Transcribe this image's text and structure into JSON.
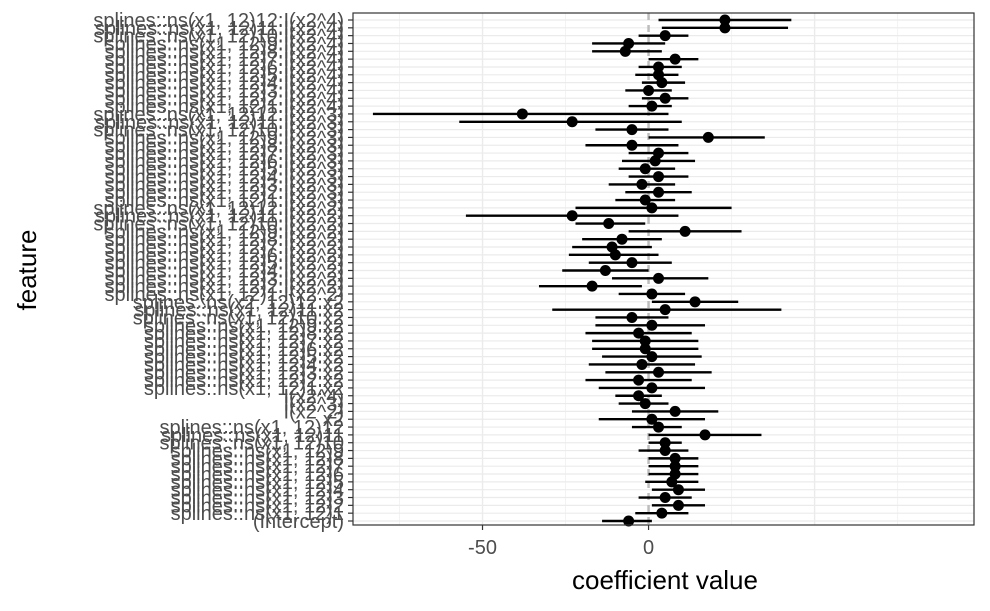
{
  "chart_data": {
    "type": "scatter",
    "subtype": "coefficient-plot-with-intervals",
    "xlabel": "coefficient value",
    "ylabel": "feature",
    "xlim": [
      -89,
      98
    ],
    "x_ticks": [
      -50,
      0
    ],
    "x_tick_labels": [
      "-50",
      "0"
    ],
    "reference_line_x": 0,
    "grid": true,
    "colors": {
      "point": "#000000",
      "interval": "#000000",
      "grid_major": "#ebebeb",
      "reference_line": "#bdbdbd",
      "panel_border": "#333333",
      "tick_text": "#4d4d4d"
    },
    "features": [
      {
        "name": "splines::ns(x1, 12)12:I(x2^4)",
        "estimate": 23,
        "lower": 3,
        "upper": 43
      },
      {
        "name": "splines::ns(x1, 12)11:I(x2^4)",
        "estimate": 23,
        "lower": 4,
        "upper": 42
      },
      {
        "name": "splines::ns(x1, 12)10:I(x2^4)",
        "estimate": 5,
        "lower": -3,
        "upper": 12
      },
      {
        "name": "splines::ns(x1, 12)9:I(x2^4)",
        "estimate": -6,
        "lower": -17,
        "upper": 5
      },
      {
        "name": "splines::ns(x1, 12)8:I(x2^4)",
        "estimate": -7,
        "lower": -17,
        "upper": 4
      },
      {
        "name": "splines::ns(x1, 12)7:I(x2^4)",
        "estimate": 8,
        "lower": 0,
        "upper": 15
      },
      {
        "name": "splines::ns(x1, 12)6:I(x2^4)",
        "estimate": 3,
        "lower": -3,
        "upper": 10
      },
      {
        "name": "splines::ns(x1, 12)5:I(x2^4)",
        "estimate": 3,
        "lower": -4,
        "upper": 9
      },
      {
        "name": "splines::ns(x1, 12)4:I(x2^4)",
        "estimate": 4,
        "lower": -2,
        "upper": 11
      },
      {
        "name": "splines::ns(x1, 12)3:I(x2^4)",
        "estimate": 0,
        "lower": -7,
        "upper": 7
      },
      {
        "name": "splines::ns(x1, 12)2:I(x2^4)",
        "estimate": 5,
        "lower": -2,
        "upper": 12
      },
      {
        "name": "splines::ns(x1, 12)1:I(x2^4)",
        "estimate": 1,
        "lower": -6,
        "upper": 7
      },
      {
        "name": "splines::ns(x1, 12)12:I(x2^3)",
        "estimate": -38,
        "lower": -83,
        "upper": 6
      },
      {
        "name": "splines::ns(x1, 12)11:I(x2^3)",
        "estimate": -23,
        "lower": -57,
        "upper": 10
      },
      {
        "name": "splines::ns(x1, 12)10:I(x2^3)",
        "estimate": -5,
        "lower": -16,
        "upper": 6
      },
      {
        "name": "splines::ns(x1, 12)9:I(x2^3)",
        "estimate": 18,
        "lower": 0,
        "upper": 35
      },
      {
        "name": "splines::ns(x1, 12)8:I(x2^3)",
        "estimate": -5,
        "lower": -19,
        "upper": 9
      },
      {
        "name": "splines::ns(x1, 12)7:I(x2^3)",
        "estimate": 3,
        "lower": -6,
        "upper": 12
      },
      {
        "name": "splines::ns(x1, 12)6:I(x2^3)",
        "estimate": 2,
        "lower": -8,
        "upper": 14
      },
      {
        "name": "splines::ns(x1, 12)5:I(x2^3)",
        "estimate": -1,
        "lower": -9,
        "upper": 8
      },
      {
        "name": "splines::ns(x1, 12)4:I(x2^3)",
        "estimate": 3,
        "lower": -6,
        "upper": 12
      },
      {
        "name": "splines::ns(x1, 12)3:I(x2^3)",
        "estimate": -2,
        "lower": -12,
        "upper": 8
      },
      {
        "name": "splines::ns(x1, 12)2:I(x2^3)",
        "estimate": 3,
        "lower": -7,
        "upper": 13
      },
      {
        "name": "splines::ns(x1, 12)1:I(x2^3)",
        "estimate": -1,
        "lower": -10,
        "upper": 8
      },
      {
        "name": "splines::ns(x1, 12)12:I(x2^2)",
        "estimate": 1,
        "lower": -22,
        "upper": 25
      },
      {
        "name": "splines::ns(x1, 12)11:I(x2^2)",
        "estimate": -23,
        "lower": -55,
        "upper": 9
      },
      {
        "name": "splines::ns(x1, 12)10:I(x2^2)",
        "estimate": -12,
        "lower": -22,
        "upper": -1
      },
      {
        "name": "splines::ns(x1, 12)9:I(x2^2)",
        "estimate": 11,
        "lower": -6,
        "upper": 28
      },
      {
        "name": "splines::ns(x1, 12)8:I(x2^2)",
        "estimate": -8,
        "lower": -20,
        "upper": 4
      },
      {
        "name": "splines::ns(x1, 12)7:I(x2^2)",
        "estimate": -11,
        "lower": -23,
        "upper": 1
      },
      {
        "name": "splines::ns(x1, 12)6:I(x2^2)",
        "estimate": -10,
        "lower": -24,
        "upper": 3
      },
      {
        "name": "splines::ns(x1, 12)5:I(x2^2)",
        "estimate": -5,
        "lower": -18,
        "upper": 7
      },
      {
        "name": "splines::ns(x1, 12)4:I(x2^2)",
        "estimate": -13,
        "lower": -26,
        "upper": 0
      },
      {
        "name": "splines::ns(x1, 12)3:I(x2^2)",
        "estimate": 3,
        "lower": -11,
        "upper": 18
      },
      {
        "name": "splines::ns(x1, 12)2:I(x2^2)",
        "estimate": -17,
        "lower": -33,
        "upper": -2
      },
      {
        "name": "splines::ns(x1, 12)1:I(x2^2)",
        "estimate": 1,
        "lower": -9,
        "upper": 11
      },
      {
        "name": "splines::ns(x2, 12)12:x2",
        "estimate": 14,
        "lower": 1,
        "upper": 27
      },
      {
        "name": "splines::ns(x1, 12)11:x2",
        "estimate": 5,
        "lower": -29,
        "upper": 40
      },
      {
        "name": "splines::ns(x1, 12)10:x2",
        "estimate": -5,
        "lower": -16,
        "upper": 6
      },
      {
        "name": "splines::ns(x1, 12)9:x2",
        "estimate": 1,
        "lower": -16,
        "upper": 17
      },
      {
        "name": "splines::ns(x1, 12)8:x2",
        "estimate": -3,
        "lower": -19,
        "upper": 13
      },
      {
        "name": "splines::ns(x1, 12)7:x2",
        "estimate": -1,
        "lower": -17,
        "upper": 15
      },
      {
        "name": "splines::ns(x1, 12)6:x2",
        "estimate": -1,
        "lower": -17,
        "upper": 15
      },
      {
        "name": "splines::ns(x1, 12)5:x2",
        "estimate": 1,
        "lower": -14,
        "upper": 16
      },
      {
        "name": "splines::ns(x1, 12)4:x2",
        "estimate": -2,
        "lower": -18,
        "upper": 14
      },
      {
        "name": "splines::ns(x1, 12)3:x2",
        "estimate": 3,
        "lower": -13,
        "upper": 19
      },
      {
        "name": "splines::ns(x1, 12)2:x2",
        "estimate": -3,
        "lower": -19,
        "upper": 13
      },
      {
        "name": "splines::ns(x1, 12)1:x2",
        "estimate": 1,
        "lower": -15,
        "upper": 17
      },
      {
        "name": "I(x2^4)",
        "estimate": -3,
        "lower": -10,
        "upper": 4
      },
      {
        "name": "I(x2^3)",
        "estimate": -1,
        "lower": -9,
        "upper": 6
      },
      {
        "name": "I(x2^2)",
        "estimate": 8,
        "lower": -5,
        "upper": 21
      },
      {
        "name": "x2",
        "estimate": 1,
        "lower": -15,
        "upper": 17
      },
      {
        "name": "splines::ns(x1, 12)12",
        "estimate": 3,
        "lower": -5,
        "upper": 10
      },
      {
        "name": "splines::ns(x1, 12)11",
        "estimate": 17,
        "lower": 0,
        "upper": 34
      },
      {
        "name": "splines::ns(x1, 12)10",
        "estimate": 5,
        "lower": 0,
        "upper": 10
      },
      {
        "name": "splines::ns(x1, 12)9",
        "estimate": 5,
        "lower": -3,
        "upper": 12
      },
      {
        "name": "splines::ns(x1, 12)8",
        "estimate": 8,
        "lower": 0,
        "upper": 15
      },
      {
        "name": "splines::ns(x1, 12)7",
        "estimate": 8,
        "lower": 0,
        "upper": 15
      },
      {
        "name": "splines::ns(x1, 12)6",
        "estimate": 8,
        "lower": 0,
        "upper": 15
      },
      {
        "name": "splines::ns(x1, 12)5",
        "estimate": 7,
        "lower": -1,
        "upper": 15
      },
      {
        "name": "splines::ns(x1, 12)4",
        "estimate": 9,
        "lower": 1,
        "upper": 17
      },
      {
        "name": "splines::ns(x1, 12)3",
        "estimate": 5,
        "lower": -3,
        "upper": 13
      },
      {
        "name": "splines::ns(x1, 12)2",
        "estimate": 9,
        "lower": 1,
        "upper": 17
      },
      {
        "name": "splines::ns(x1, 12)1",
        "estimate": 4,
        "lower": -4,
        "upper": 12
      },
      {
        "name": "(Intercept)",
        "estimate": -6,
        "lower": -14,
        "upper": 1
      }
    ]
  }
}
